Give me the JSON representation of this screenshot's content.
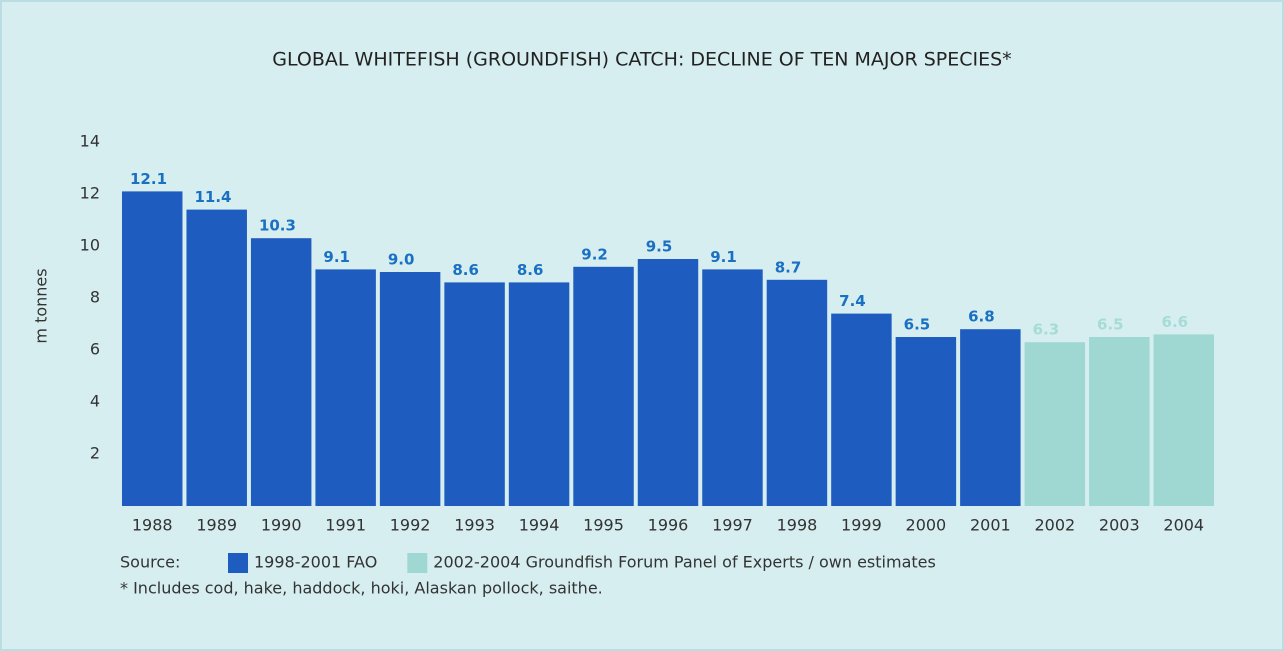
{
  "chart_data": {
    "type": "bar",
    "title": "GLOBAL WHITEFISH (GROUNDFISH) CATCH: DECLINE OF TEN MAJOR SPECIES*",
    "y_label": "m tonnes",
    "categories": [
      "1988",
      "1989",
      "1990",
      "1991",
      "1992",
      "1993",
      "1994",
      "1995",
      "1996",
      "1997",
      "1998",
      "1999",
      "2000",
      "2001",
      "2002",
      "2003",
      "2004"
    ],
    "series": [
      {
        "name": "1998-2001 FAO",
        "color": "#1f5cc0",
        "label_color": "#1a70c2",
        "values": [
          12.1,
          11.4,
          10.3,
          9.1,
          9.0,
          8.6,
          8.6,
          9.2,
          9.5,
          9.1,
          8.7,
          7.4,
          6.5,
          6.8,
          null,
          null,
          null
        ],
        "value_labels": [
          "12.1",
          "11.4",
          "10.3",
          "9.1",
          "9.0",
          "8.6",
          "8.6",
          "9.2",
          "9.5",
          "9.1",
          "8.7",
          "7.4",
          "6.5",
          "6.8",
          null,
          null,
          null
        ]
      },
      {
        "name": "2002-2004 Groundfish Forum Panel of Experts / own estimates",
        "color": "#9fd8d2",
        "label_color": "#a6dcd6",
        "values": [
          null,
          null,
          null,
          null,
          null,
          null,
          null,
          null,
          null,
          null,
          null,
          null,
          null,
          null,
          6.3,
          6.5,
          6.6
        ],
        "value_labels": [
          null,
          null,
          null,
          null,
          null,
          null,
          null,
          null,
          null,
          null,
          null,
          null,
          null,
          null,
          "6.3",
          "6.5",
          "6.6"
        ]
      }
    ],
    "ylim": [
      0,
      14
    ],
    "yticks": [
      2,
      4,
      6,
      8,
      10,
      12,
      14
    ],
    "source_label": "Source:",
    "footnote": "* Includes cod, hake, haddock, hoki, Alaskan pollock, saithe."
  }
}
